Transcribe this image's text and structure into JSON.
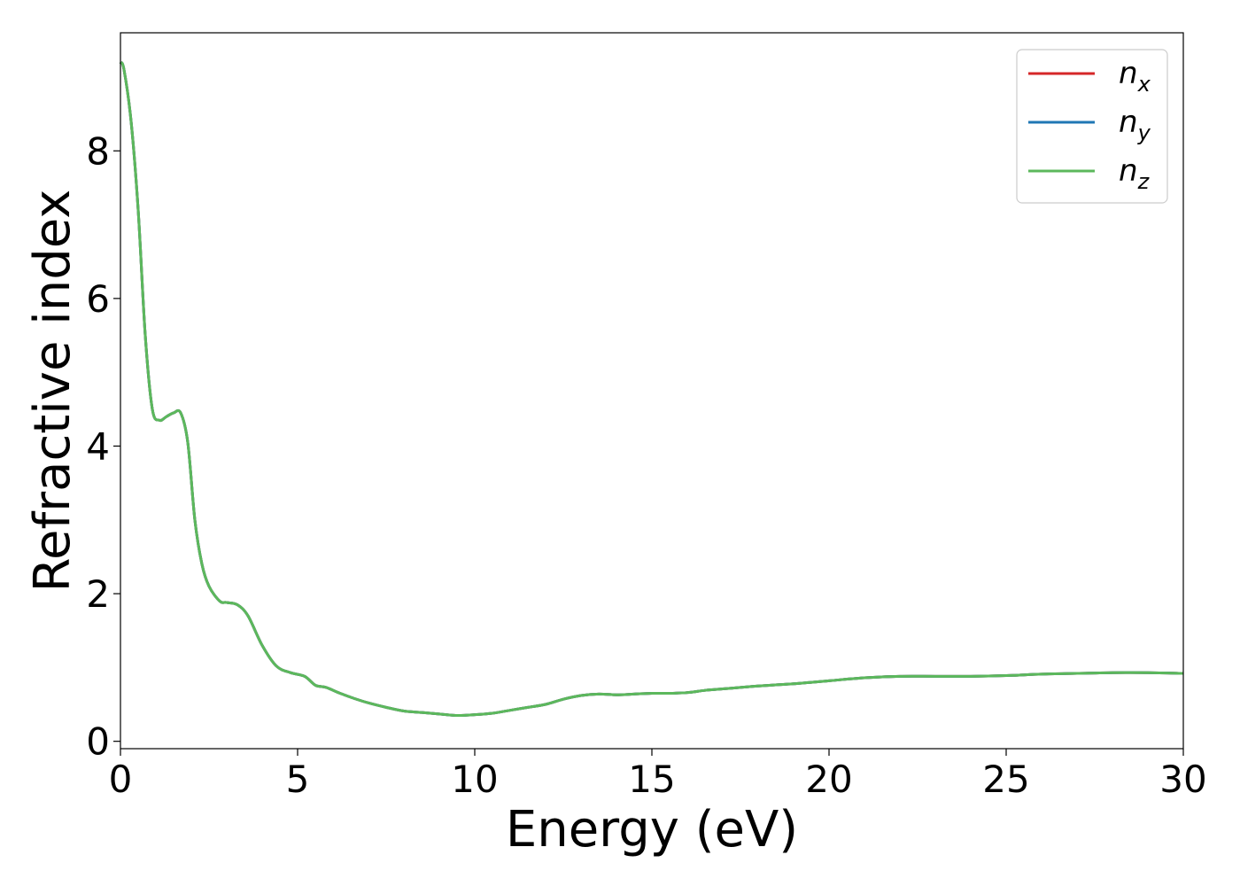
{
  "chart_data": {
    "type": "line",
    "xlabel": "Energy (eV)",
    "ylabel": "Refractive index",
    "xlim": [
      0,
      30
    ],
    "ylim": [
      -0.1,
      9.6
    ],
    "xticks": [
      "0",
      "5",
      "10",
      "15",
      "20",
      "25",
      "30"
    ],
    "yticks": [
      "0",
      "2",
      "4",
      "6",
      "8"
    ],
    "grid": false,
    "legend_position": "top-right",
    "series": [
      {
        "name": "n",
        "subscript": "x",
        "color": "#d62728",
        "x": [
          0.0,
          0.1,
          0.3,
          0.5,
          0.7,
          0.9,
          1.1,
          1.3,
          1.5,
          1.7,
          1.9,
          2.1,
          2.3,
          2.5,
          2.8,
          3.0,
          3.3,
          3.6,
          4.0,
          4.4,
          4.8,
          5.2,
          5.5,
          5.8,
          6.2,
          6.6,
          7.0,
          7.5,
          8.0,
          8.5,
          9.0,
          9.5,
          10.0,
          10.5,
          11.0,
          11.5,
          12.0,
          12.5,
          13.0,
          13.5,
          14.0,
          14.5,
          15.0,
          15.5,
          16.0,
          16.5,
          17.0,
          17.5,
          18.0,
          19.0,
          20.0,
          21.0,
          22.0,
          23.0,
          24.0,
          25.0,
          26.0,
          27.0,
          28.0,
          29.0,
          30.0
        ],
        "y": [
          9.2,
          9.1,
          8.4,
          7.2,
          5.5,
          4.5,
          4.35,
          4.4,
          4.45,
          4.45,
          4.05,
          3.0,
          2.4,
          2.1,
          1.9,
          1.88,
          1.85,
          1.7,
          1.3,
          1.02,
          0.93,
          0.88,
          0.76,
          0.73,
          0.65,
          0.58,
          0.52,
          0.46,
          0.41,
          0.39,
          0.37,
          0.35,
          0.36,
          0.38,
          0.42,
          0.46,
          0.5,
          0.57,
          0.62,
          0.64,
          0.63,
          0.64,
          0.65,
          0.65,
          0.66,
          0.69,
          0.71,
          0.73,
          0.75,
          0.78,
          0.82,
          0.86,
          0.88,
          0.88,
          0.88,
          0.89,
          0.91,
          0.92,
          0.93,
          0.93,
          0.92
        ]
      },
      {
        "name": "n",
        "subscript": "y",
        "color": "#1f77b4",
        "x": [
          0.0,
          0.1,
          0.3,
          0.5,
          0.7,
          0.9,
          1.1,
          1.3,
          1.5,
          1.7,
          1.9,
          2.1,
          2.3,
          2.5,
          2.8,
          3.0,
          3.3,
          3.6,
          4.0,
          4.4,
          4.8,
          5.2,
          5.5,
          5.8,
          6.2,
          6.6,
          7.0,
          7.5,
          8.0,
          8.5,
          9.0,
          9.5,
          10.0,
          10.5,
          11.0,
          11.5,
          12.0,
          12.5,
          13.0,
          13.5,
          14.0,
          14.5,
          15.0,
          15.5,
          16.0,
          16.5,
          17.0,
          17.5,
          18.0,
          19.0,
          20.0,
          21.0,
          22.0,
          23.0,
          24.0,
          25.0,
          26.0,
          27.0,
          28.0,
          29.0,
          30.0
        ],
        "y": [
          9.2,
          9.1,
          8.4,
          7.2,
          5.5,
          4.5,
          4.35,
          4.4,
          4.45,
          4.45,
          4.05,
          3.0,
          2.4,
          2.1,
          1.9,
          1.88,
          1.85,
          1.7,
          1.3,
          1.02,
          0.93,
          0.88,
          0.76,
          0.73,
          0.65,
          0.58,
          0.52,
          0.46,
          0.41,
          0.39,
          0.37,
          0.35,
          0.36,
          0.38,
          0.42,
          0.46,
          0.5,
          0.57,
          0.62,
          0.64,
          0.63,
          0.64,
          0.65,
          0.65,
          0.66,
          0.69,
          0.71,
          0.73,
          0.75,
          0.78,
          0.82,
          0.86,
          0.88,
          0.88,
          0.88,
          0.89,
          0.91,
          0.92,
          0.93,
          0.93,
          0.92
        ]
      },
      {
        "name": "n",
        "subscript": "z",
        "color": "#5cb85c",
        "x": [
          0.0,
          0.1,
          0.3,
          0.5,
          0.7,
          0.9,
          1.1,
          1.3,
          1.5,
          1.7,
          1.9,
          2.1,
          2.3,
          2.5,
          2.8,
          3.0,
          3.3,
          3.6,
          4.0,
          4.4,
          4.8,
          5.2,
          5.5,
          5.8,
          6.2,
          6.6,
          7.0,
          7.5,
          8.0,
          8.5,
          9.0,
          9.5,
          10.0,
          10.5,
          11.0,
          11.5,
          12.0,
          12.5,
          13.0,
          13.5,
          14.0,
          14.5,
          15.0,
          15.5,
          16.0,
          16.5,
          17.0,
          17.5,
          18.0,
          19.0,
          20.0,
          21.0,
          22.0,
          23.0,
          24.0,
          25.0,
          26.0,
          27.0,
          28.0,
          29.0,
          30.0
        ],
        "y": [
          9.2,
          9.1,
          8.4,
          7.2,
          5.5,
          4.5,
          4.35,
          4.4,
          4.45,
          4.45,
          4.05,
          3.0,
          2.4,
          2.1,
          1.9,
          1.88,
          1.85,
          1.7,
          1.3,
          1.02,
          0.93,
          0.88,
          0.76,
          0.73,
          0.65,
          0.58,
          0.52,
          0.46,
          0.41,
          0.39,
          0.37,
          0.35,
          0.36,
          0.38,
          0.42,
          0.46,
          0.5,
          0.57,
          0.62,
          0.64,
          0.63,
          0.64,
          0.65,
          0.65,
          0.66,
          0.69,
          0.71,
          0.73,
          0.75,
          0.78,
          0.82,
          0.86,
          0.88,
          0.88,
          0.88,
          0.89,
          0.91,
          0.92,
          0.93,
          0.93,
          0.92
        ]
      }
    ]
  }
}
